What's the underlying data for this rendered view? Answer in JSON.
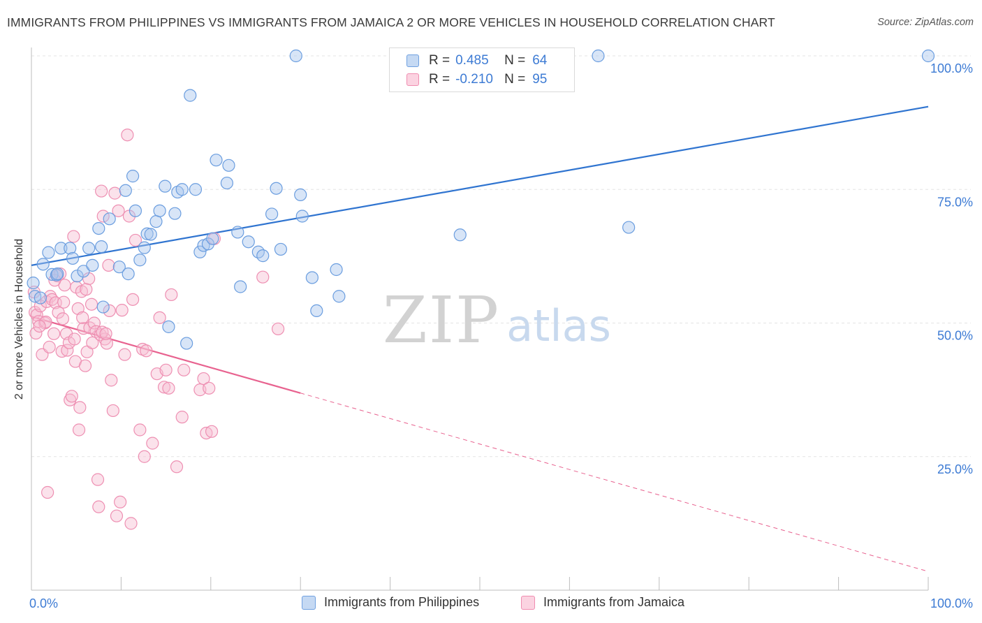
{
  "header": {
    "title": "IMMIGRANTS FROM PHILIPPINES VS IMMIGRANTS FROM JAMAICA 2 OR MORE VEHICLES IN HOUSEHOLD CORRELATION CHART",
    "source": "Source: ZipAtlas.com"
  },
  "watermark": {
    "zip": "ZIP",
    "atlas": "atlas"
  },
  "legend": {
    "rows": [
      {
        "r_label": "R =",
        "r_value": "0.485",
        "n_label": "N =",
        "n_value": "64",
        "color": "#6fa0e0"
      },
      {
        "r_label": "R =",
        "r_value": "-0.210",
        "n_label": "N =",
        "n_value": "95",
        "color": "#f08cb0"
      }
    ]
  },
  "bottom_legend": {
    "philippines": "Immigrants from Philippines",
    "jamaica": "Immigrants from Jamaica"
  },
  "colors": {
    "blue_fill": "#a9c6ee",
    "blue_stroke": "#6a9ddf",
    "blue_line": "#2f74d0",
    "pink_fill": "#f6bfd2",
    "pink_stroke": "#ee8fb2",
    "pink_line": "#e8628f",
    "tick_text": "#3d7bd4",
    "grid": "#e3e3e3"
  },
  "chart_data": {
    "type": "scatter",
    "title": "IMMIGRANTS FROM PHILIPPINES VS IMMIGRANTS FROM JAMAICA 2 OR MORE VEHICLES IN HOUSEHOLD CORRELATION CHART",
    "xlabel": "",
    "ylabel": "2 or more Vehicles in Household",
    "xlim": [
      0,
      100
    ],
    "ylim": [
      0,
      100
    ],
    "x_tick_labels": [
      "0.0%",
      "100.0%"
    ],
    "y_tick_labels": [
      "25.0%",
      "50.0%",
      "75.0%",
      "100.0%"
    ],
    "y_ticks": [
      25,
      50,
      75,
      100
    ],
    "grid": true,
    "legend_position": "top-center",
    "series": [
      {
        "name": "Immigrants from Philippines",
        "R": 0.485,
        "N": 64,
        "trend": {
          "x": [
            0,
            100
          ],
          "y": [
            60.8,
            90.5
          ],
          "solid_until": 100
        },
        "points": [
          [
            0.2,
            57.5
          ],
          [
            0.4,
            55.0
          ],
          [
            1.3,
            61.0
          ],
          [
            1.9,
            63.2
          ],
          [
            2.3,
            59.1
          ],
          [
            2.8,
            59.0
          ],
          [
            3.3,
            64.0
          ],
          [
            4.3,
            64.0
          ],
          [
            4.6,
            62.1
          ],
          [
            5.1,
            58.8
          ],
          [
            5.8,
            59.7
          ],
          [
            6.4,
            64.0
          ],
          [
            6.8,
            60.8
          ],
          [
            7.5,
            67.7
          ],
          [
            7.8,
            64.3
          ],
          [
            8.0,
            53.0
          ],
          [
            8.7,
            69.5
          ],
          [
            9.8,
            60.5
          ],
          [
            10.5,
            74.8
          ],
          [
            10.8,
            59.2
          ],
          [
            11.3,
            77.5
          ],
          [
            11.6,
            71.0
          ],
          [
            12.1,
            61.8
          ],
          [
            12.6,
            64.1
          ],
          [
            12.9,
            66.7
          ],
          [
            13.3,
            66.6
          ],
          [
            13.9,
            69.0
          ],
          [
            14.3,
            71.0
          ],
          [
            14.9,
            75.6
          ],
          [
            15.3,
            49.3
          ],
          [
            16.0,
            70.5
          ],
          [
            16.3,
            74.5
          ],
          [
            16.8,
            75.0
          ],
          [
            17.3,
            46.2
          ],
          [
            17.7,
            92.6
          ],
          [
            18.3,
            75.0
          ],
          [
            18.8,
            63.3
          ],
          [
            19.2,
            64.5
          ],
          [
            19.7,
            64.8
          ],
          [
            20.2,
            65.8
          ],
          [
            20.6,
            80.5
          ],
          [
            21.8,
            76.2
          ],
          [
            22.0,
            79.5
          ],
          [
            23.0,
            67.0
          ],
          [
            23.3,
            56.8
          ],
          [
            24.2,
            65.2
          ],
          [
            25.3,
            63.3
          ],
          [
            25.8,
            62.6
          ],
          [
            26.8,
            70.4
          ],
          [
            27.3,
            75.2
          ],
          [
            27.8,
            63.8
          ],
          [
            29.5,
            100.0
          ],
          [
            30.0,
            74.0
          ],
          [
            30.2,
            70.0
          ],
          [
            31.3,
            58.5
          ],
          [
            31.8,
            52.3
          ],
          [
            34.0,
            60.0
          ],
          [
            34.3,
            55.0
          ],
          [
            47.8,
            66.5
          ],
          [
            63.2,
            100.0
          ],
          [
            66.6,
            67.9
          ],
          [
            100.0,
            100.0
          ],
          [
            1.0,
            54.7
          ],
          [
            2.9,
            59.2
          ]
        ]
      },
      {
        "name": "Immigrants from Jamaica",
        "R": -0.21,
        "N": 95,
        "trend": {
          "x": [
            0,
            100
          ],
          "y": [
            51.2,
            3.5
          ],
          "solid_until": 30.0
        },
        "points": [
          [
            0.3,
            55.8
          ],
          [
            0.4,
            52.0
          ],
          [
            0.5,
            48.1
          ],
          [
            0.6,
            51.5
          ],
          [
            0.8,
            50.3
          ],
          [
            1.0,
            53.2
          ],
          [
            1.2,
            44.1
          ],
          [
            1.5,
            50.0
          ],
          [
            1.7,
            54.0
          ],
          [
            1.8,
            18.3
          ],
          [
            2.0,
            45.5
          ],
          [
            2.1,
            55.0
          ],
          [
            2.3,
            54.4
          ],
          [
            2.5,
            48.0
          ],
          [
            2.7,
            53.8
          ],
          [
            2.9,
            58.8
          ],
          [
            3.0,
            52.0
          ],
          [
            3.2,
            59.2
          ],
          [
            3.4,
            44.7
          ],
          [
            3.5,
            50.8
          ],
          [
            3.7,
            57.1
          ],
          [
            3.9,
            48.0
          ],
          [
            4.0,
            44.9
          ],
          [
            4.2,
            46.3
          ],
          [
            4.3,
            35.6
          ],
          [
            4.5,
            36.3
          ],
          [
            4.7,
            66.2
          ],
          [
            4.9,
            42.8
          ],
          [
            5.0,
            56.7
          ],
          [
            5.2,
            52.7
          ],
          [
            5.3,
            30.0
          ],
          [
            5.4,
            34.2
          ],
          [
            5.6,
            55.9
          ],
          [
            5.8,
            49.0
          ],
          [
            6.0,
            42.0
          ],
          [
            6.2,
            44.6
          ],
          [
            6.4,
            58.3
          ],
          [
            6.5,
            49.1
          ],
          [
            6.7,
            53.5
          ],
          [
            6.8,
            46.3
          ],
          [
            7.0,
            50.0
          ],
          [
            7.2,
            48.4
          ],
          [
            7.4,
            20.7
          ],
          [
            7.5,
            15.6
          ],
          [
            7.7,
            47.8
          ],
          [
            7.8,
            74.7
          ],
          [
            8.0,
            70.0
          ],
          [
            8.2,
            47.0
          ],
          [
            8.4,
            46.2
          ],
          [
            8.6,
            60.8
          ],
          [
            8.7,
            52.3
          ],
          [
            8.9,
            39.3
          ],
          [
            9.1,
            33.6
          ],
          [
            9.3,
            74.3
          ],
          [
            9.5,
            13.9
          ],
          [
            9.7,
            71.0
          ],
          [
            9.9,
            16.5
          ],
          [
            10.1,
            52.4
          ],
          [
            10.4,
            44.1
          ],
          [
            10.7,
            85.2
          ],
          [
            10.9,
            70.0
          ],
          [
            11.1,
            12.5
          ],
          [
            11.3,
            54.4
          ],
          [
            11.6,
            65.5
          ],
          [
            12.1,
            30.0
          ],
          [
            12.4,
            45.1
          ],
          [
            12.6,
            25.0
          ],
          [
            13.5,
            27.5
          ],
          [
            14.0,
            40.5
          ],
          [
            14.3,
            51.0
          ],
          [
            14.8,
            38.0
          ],
          [
            15.0,
            41.2
          ],
          [
            15.3,
            37.8
          ],
          [
            15.6,
            55.3
          ],
          [
            16.2,
            23.1
          ],
          [
            16.8,
            32.4
          ],
          [
            17.0,
            41.2
          ],
          [
            18.8,
            37.5
          ],
          [
            19.2,
            39.6
          ],
          [
            19.5,
            29.4
          ],
          [
            19.8,
            37.8
          ],
          [
            20.1,
            29.7
          ],
          [
            20.4,
            65.8
          ],
          [
            25.8,
            58.6
          ],
          [
            27.5,
            48.9
          ],
          [
            7.9,
            48.3
          ],
          [
            3.6,
            53.9
          ],
          [
            2.6,
            58.0
          ],
          [
            1.6,
            50.2
          ],
          [
            6.1,
            56.3
          ],
          [
            8.3,
            48.0
          ],
          [
            4.8,
            47.0
          ],
          [
            5.7,
            51.0
          ],
          [
            0.9,
            49.4
          ],
          [
            12.8,
            44.8
          ]
        ]
      }
    ]
  }
}
